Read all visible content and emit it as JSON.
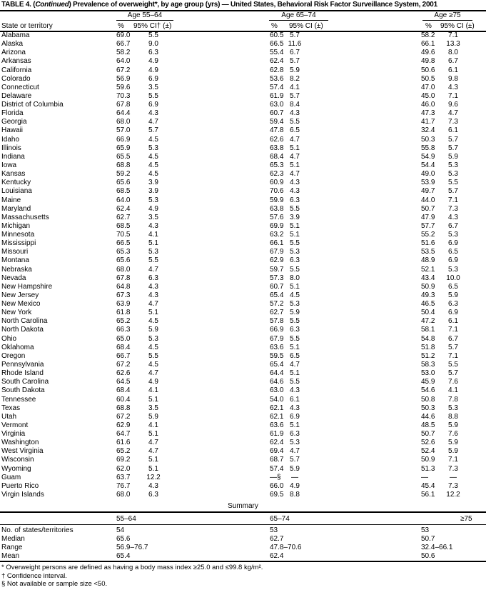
{
  "title": {
    "prefix": "TABLE 4. (",
    "continued": "Continued",
    "rest": ") Prevalence of overweight*, by age group (yrs) — United States, Behavioral Risk Factor Surveillance System, 2001"
  },
  "headers": {
    "state": "State or territory",
    "groups": [
      "Age 55–64",
      "Age 65–74",
      "Age ≥75"
    ],
    "pct": "%",
    "ci_first": "95% CI† (±)",
    "ci": "95% CI (±)"
  },
  "rows": [
    [
      "Alabama",
      "69.0",
      "5.5",
      "60.5",
      "5.7",
      "58.2",
      "7.1"
    ],
    [
      "Alaska",
      "66.7",
      "9.0",
      "66.5",
      "11.6",
      "66.1",
      "13.3"
    ],
    [
      "Arizona",
      "58.2",
      "6.3",
      "55.4",
      "6.7",
      "49.6",
      "8.0"
    ],
    [
      "Arkansas",
      "64.0",
      "4.9",
      "62.4",
      "5.7",
      "49.8",
      "6.7"
    ],
    [
      "California",
      "67.2",
      "4.9",
      "62.8",
      "5.9",
      "50.6",
      "6.1"
    ],
    [
      "Colorado",
      "56.9",
      "6.9",
      "53.6",
      "8.2",
      "50.5",
      "9.8"
    ],
    [
      "Connecticut",
      "59.6",
      "3.5",
      "57.4",
      "4.1",
      "47.0",
      "4.3"
    ],
    [
      "Delaware",
      "70.3",
      "5.5",
      "61.9",
      "5.7",
      "45.0",
      "7.1"
    ],
    [
      "District of Columbia",
      "67.8",
      "6.9",
      "63.0",
      "8.4",
      "46.0",
      "9.6"
    ],
    [
      "Florida",
      "64.4",
      "4.3",
      "60.7",
      "4.3",
      "47.3",
      "4.7"
    ],
    [
      "Georgia",
      "68.0",
      "4.7",
      "59.4",
      "5.5",
      "41.7",
      "7.3"
    ],
    [
      "Hawaii",
      "57.0",
      "5.7",
      "47.8",
      "6.5",
      "32.4",
      "6.1"
    ],
    [
      "Idaho",
      "66.9",
      "4.5",
      "62.6",
      "4.7",
      "50.3",
      "5.7"
    ],
    [
      "Illinois",
      "65.9",
      "5.3",
      "63.8",
      "5.1",
      "55.8",
      "5.7"
    ],
    [
      "Indiana",
      "65.5",
      "4.5",
      "68.4",
      "4.7",
      "54.9",
      "5.9"
    ],
    [
      "Iowa",
      "68.8",
      "4.5",
      "65.3",
      "5.1",
      "54.4",
      "5.3"
    ],
    [
      "Kansas",
      "59.2",
      "4.5",
      "62.3",
      "4.7",
      "49.0",
      "5.3"
    ],
    [
      "Kentucky",
      "65.6",
      "3.9",
      "60.9",
      "4.3",
      "53.9",
      "5.5"
    ],
    [
      "Louisiana",
      "68.5",
      "3.9",
      "70.6",
      "4.3",
      "49.7",
      "5.7"
    ],
    [
      "Maine",
      "64.0",
      "5.3",
      "59.9",
      "6.3",
      "44.0",
      "7.1"
    ],
    [
      "Maryland",
      "62.4",
      "4.9",
      "63.8",
      "5.5",
      "50.7",
      "7.3"
    ],
    [
      "Massachusetts",
      "62.7",
      "3.5",
      "57.6",
      "3.9",
      "47.9",
      "4.3"
    ],
    [
      "Michigan",
      "68.5",
      "4.3",
      "69.9",
      "5.1",
      "57.7",
      "6.7"
    ],
    [
      "Minnesota",
      "70.5",
      "4.1",
      "63.2",
      "5.1",
      "55.2",
      "5.3"
    ],
    [
      "Mississippi",
      "66.5",
      "5.1",
      "66.1",
      "5.5",
      "51.6",
      "6.9"
    ],
    [
      "Missouri",
      "65.3",
      "5.3",
      "67.9",
      "5.3",
      "53.5",
      "6.5"
    ],
    [
      "Montana",
      "65.6",
      "5.5",
      "62.9",
      "6.3",
      "48.9",
      "6.9"
    ],
    [
      "Nebraska",
      "68.0",
      "4.7",
      "59.7",
      "5.5",
      "52.1",
      "5.3"
    ],
    [
      "Nevada",
      "67.8",
      "6.3",
      "57.3",
      "8.0",
      "43.4",
      "10.0"
    ],
    [
      "New Hampshire",
      "64.8",
      "4.3",
      "60.7",
      "5.1",
      "50.9",
      "6.5"
    ],
    [
      "New Jersey",
      "67.3",
      "4.3",
      "65.4",
      "4.5",
      "49.3",
      "5.9"
    ],
    [
      "New Mexico",
      "63.9",
      "4.7",
      "57.2",
      "5.3",
      "46.5",
      "6.3"
    ],
    [
      "New York",
      "61.8",
      "5.1",
      "62.7",
      "5.9",
      "50.4",
      "6.9"
    ],
    [
      "North Carolina",
      "65.2",
      "4.5",
      "57.8",
      "5.5",
      "47.2",
      "6.1"
    ],
    [
      "North Dakota",
      "66.3",
      "5.9",
      "66.9",
      "6.3",
      "58.1",
      "7.1"
    ],
    [
      "Ohio",
      "65.0",
      "5.3",
      "67.9",
      "5.5",
      "54.8",
      "6.7"
    ],
    [
      "Oklahoma",
      "68.4",
      "4.5",
      "63.6",
      "5.1",
      "51.8",
      "5.7"
    ],
    [
      "Oregon",
      "66.7",
      "5.5",
      "59.5",
      "6.5",
      "51.2",
      "7.1"
    ],
    [
      "Pennsylvania",
      "67.2",
      "4.5",
      "65.4",
      "4.7",
      "58.3",
      "5.5"
    ],
    [
      "Rhode Island",
      "62.6",
      "4.7",
      "64.4",
      "5.1",
      "53.0",
      "5.7"
    ],
    [
      "South Carolina",
      "64.5",
      "4.9",
      "64.6",
      "5.5",
      "45.9",
      "7.6"
    ],
    [
      "South Dakota",
      "68.4",
      "4.1",
      "63.0",
      "4.3",
      "54.6",
      "4.1"
    ],
    [
      "Tennessee",
      "60.4",
      "5.1",
      "54.0",
      "6.1",
      "50.8",
      "7.8"
    ],
    [
      "Texas",
      "68.8",
      "3.5",
      "62.1",
      "4.3",
      "50.3",
      "5.3"
    ],
    [
      "Utah",
      "67.2",
      "5.9",
      "62.1",
      "6.9",
      "44.6",
      "8.8"
    ],
    [
      "Vermont",
      "62.9",
      "4.1",
      "63.6",
      "5.1",
      "48.5",
      "5.9"
    ],
    [
      "Virginia",
      "64.7",
      "5.1",
      "61.9",
      "6.3",
      "50.7",
      "7.6"
    ],
    [
      "Washington",
      "61.6",
      "4.7",
      "62.4",
      "5.3",
      "52.6",
      "5.9"
    ],
    [
      "West Virginia",
      "65.2",
      "4.7",
      "69.4",
      "4.7",
      "52.4",
      "5.9"
    ],
    [
      "Wisconsin",
      "69.2",
      "5.1",
      "68.7",
      "5.7",
      "50.9",
      "7.1"
    ],
    [
      "Wyoming",
      "62.0",
      "5.1",
      "57.4",
      "5.9",
      "51.3",
      "7.3"
    ],
    [
      "Guam",
      "63.7",
      "12.2",
      "—§",
      "—",
      "—",
      "—"
    ],
    [
      "Puerto Rico",
      "76.7",
      "4.3",
      "66.0",
      "4.9",
      "45.4",
      "7.3"
    ],
    [
      "Virgin Islands",
      "68.0",
      "6.3",
      "69.5",
      "8.8",
      "56.1",
      "12.2"
    ]
  ],
  "summary": {
    "label": "Summary",
    "headers": [
      "55–64",
      "65–74",
      "≥75"
    ],
    "rows": [
      [
        "No. of states/territories",
        "54",
        "53",
        "53"
      ],
      [
        "Median",
        "65.6",
        "62.7",
        "50.7"
      ],
      [
        "Range",
        "56.9–76.7",
        "47.8–70.6",
        "32.4–66.1"
      ],
      [
        "Mean",
        "65.4",
        "62.4",
        "50.6"
      ]
    ]
  },
  "footnotes": [
    "* Overweight persons are defined as having a body mass index ≥25.0 and ≤99.8 kg/m².",
    "† Confidence interval.",
    "§ Not available or sample size <50."
  ]
}
